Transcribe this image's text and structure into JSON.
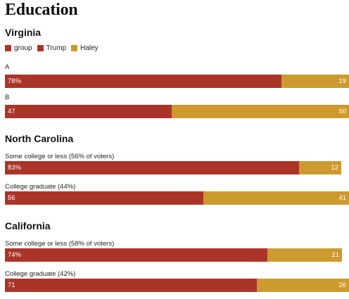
{
  "title": "Education",
  "legend": [
    {
      "name": "group",
      "color": "#ab3428"
    },
    {
      "name": "Trump",
      "color": "#ab3428"
    },
    {
      "name": "Haley",
      "color": "#cc9a2f"
    }
  ],
  "colors": {
    "trump": "#ab3428",
    "haley": "#cc9a2f"
  },
  "chart_data": [
    {
      "type": "bar",
      "title": "Virginia",
      "orientation": "horizontal-stacked",
      "categories": [
        "A",
        "B"
      ],
      "series": [
        {
          "name": "Trump",
          "values": [
            78,
            47
          ],
          "labels": [
            "78%",
            "47"
          ]
        },
        {
          "name": "Haley",
          "values": [
            19,
            50
          ],
          "labels": [
            "19",
            "50"
          ]
        }
      ],
      "xlim": [
        0,
        100
      ]
    },
    {
      "type": "bar",
      "title": "North Carolina",
      "orientation": "horizontal-stacked",
      "categories": [
        "Some college or less (56% of voters)",
        "College graduate (44%)"
      ],
      "series": [
        {
          "name": "Trump",
          "values": [
            83,
            56
          ],
          "labels": [
            "83%",
            "56"
          ]
        },
        {
          "name": "Haley",
          "values": [
            12,
            41
          ],
          "labels": [
            "12",
            "41"
          ]
        }
      ],
      "xlim": [
        0,
        100
      ]
    },
    {
      "type": "bar",
      "title": "California",
      "orientation": "horizontal-stacked",
      "categories": [
        "Some college or less (58% of voters)",
        "College graduate (42%)"
      ],
      "series": [
        {
          "name": "Trump",
          "values": [
            74,
            71
          ],
          "labels": [
            "74%",
            "71"
          ]
        },
        {
          "name": "Haley",
          "values": [
            21,
            26
          ],
          "labels": [
            "21",
            "26"
          ]
        }
      ],
      "xlim": [
        0,
        100
      ]
    }
  ]
}
